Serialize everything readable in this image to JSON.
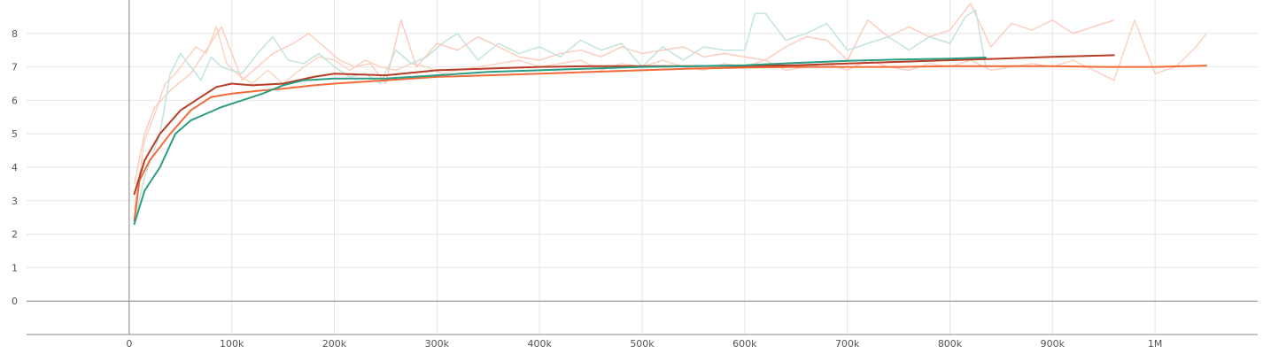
{
  "chart_data": {
    "type": "line",
    "title": "",
    "xlabel": "",
    "ylabel": "",
    "xlim": [
      -100000,
      1100000
    ],
    "ylim": [
      -1,
      9
    ],
    "x_ticks": [
      {
        "value": 0,
        "label": "0"
      },
      {
        "value": 100000,
        "label": "100k"
      },
      {
        "value": 200000,
        "label": "200k"
      },
      {
        "value": 300000,
        "label": "300k"
      },
      {
        "value": 400000,
        "label": "400k"
      },
      {
        "value": 500000,
        "label": "500k"
      },
      {
        "value": 600000,
        "label": "600k"
      },
      {
        "value": 700000,
        "label": "700k"
      },
      {
        "value": 800000,
        "label": "800k"
      },
      {
        "value": 900000,
        "label": "900k"
      },
      {
        "value": 1000000,
        "label": "1M"
      }
    ],
    "y_ticks": [
      {
        "value": 0,
        "label": "0"
      },
      {
        "value": 1,
        "label": "1"
      },
      {
        "value": 2,
        "label": "2"
      },
      {
        "value": 3,
        "label": "3"
      },
      {
        "value": 4,
        "label": "4"
      },
      {
        "value": 5,
        "label": "5"
      },
      {
        "value": 6,
        "label": "6"
      },
      {
        "value": 7,
        "label": "7"
      },
      {
        "value": 8,
        "label": "8"
      }
    ],
    "grid": true,
    "legend": "none",
    "series": [
      {
        "color": "#f26b38",
        "raw_color": "#fbd0bf",
        "smoothed": {
          "x": [
            5000,
            10000,
            20000,
            40000,
            60000,
            80000,
            100000,
            130000,
            150000,
            180000,
            200000,
            250000,
            300000,
            350000,
            400000,
            450000,
            500000,
            550000,
            600000,
            650000,
            700000,
            750000,
            800000,
            850000,
            900000,
            950000,
            1000000,
            1050000
          ],
          "y": [
            2.4,
            3.6,
            4.2,
            5.0,
            5.7,
            6.1,
            6.2,
            6.3,
            6.35,
            6.45,
            6.5,
            6.6,
            6.7,
            6.75,
            6.8,
            6.85,
            6.9,
            6.95,
            6.98,
            7.0,
            7.0,
            7.0,
            7.02,
            7.02,
            7.02,
            7.0,
            7.0,
            7.04
          ]
        },
        "raw": {
          "x": [
            5000,
            15000,
            25000,
            35000,
            45000,
            55000,
            65000,
            75000,
            85000,
            95000,
            105000,
            120000,
            135000,
            150000,
            170000,
            185000,
            200000,
            215000,
            230000,
            245000,
            260000,
            275000,
            290000,
            305000,
            320000,
            340000,
            360000,
            380000,
            400000,
            420000,
            440000,
            460000,
            480000,
            500000,
            520000,
            540000,
            560000,
            580000,
            600000,
            620000,
            640000,
            660000,
            680000,
            700000,
            720000,
            740000,
            760000,
            780000,
            800000,
            820000,
            840000,
            860000,
            880000,
            900000,
            920000,
            940000,
            960000,
            980000,
            1000000,
            1020000,
            1040000,
            1050000
          ],
          "y": [
            2.7,
            4.8,
            5.6,
            6.5,
            6.8,
            7.2,
            7.6,
            7.4,
            8.2,
            7.1,
            6.8,
            6.5,
            6.9,
            6.5,
            7.0,
            7.3,
            7.2,
            6.9,
            7.2,
            7.0,
            6.9,
            7.1,
            7.0,
            6.8,
            6.9,
            7.0,
            7.1,
            7.2,
            7.0,
            7.1,
            7.2,
            6.9,
            7.1,
            7.0,
            7.2,
            7.0,
            6.9,
            7.1,
            7.0,
            7.2,
            6.9,
            7.0,
            7.1,
            6.9,
            7.2,
            7.0,
            6.9,
            7.1,
            7.0,
            7.2,
            6.9,
            7.0,
            7.1,
            7.0,
            7.2,
            6.9,
            6.6,
            8.4,
            6.8,
            7.0,
            7.6,
            8.0
          ]
        }
      },
      {
        "color": "#b83c26",
        "raw_color": "#ffc9bc",
        "smoothed": {
          "x": [
            5000,
            15000,
            30000,
            50000,
            70000,
            85000,
            100000,
            120000,
            150000,
            180000,
            200000,
            250000,
            300000,
            350000,
            400000,
            450000,
            500000,
            550000,
            600000,
            650000,
            700000,
            750000,
            800000,
            850000,
            900000,
            960000
          ],
          "y": [
            3.2,
            4.2,
            5.0,
            5.7,
            6.1,
            6.4,
            6.5,
            6.45,
            6.5,
            6.7,
            6.8,
            6.75,
            6.9,
            6.95,
            7.0,
            7.02,
            7.02,
            7.02,
            7.03,
            7.05,
            7.1,
            7.15,
            7.2,
            7.25,
            7.3,
            7.35
          ]
        },
        "raw": {
          "x": [
            5000,
            15000,
            25000,
            40000,
            60000,
            75000,
            90000,
            110000,
            125000,
            140000,
            160000,
            175000,
            190000,
            205000,
            220000,
            235000,
            250000,
            265000,
            280000,
            300000,
            320000,
            340000,
            360000,
            380000,
            400000,
            420000,
            440000,
            460000,
            480000,
            500000,
            520000,
            540000,
            560000,
            580000,
            600000,
            620000,
            640000,
            660000,
            680000,
            700000,
            720000,
            740000,
            760000,
            780000,
            800000,
            820000,
            840000,
            860000,
            880000,
            900000,
            920000,
            940000,
            960000
          ],
          "y": [
            3.5,
            5.0,
            5.8,
            6.3,
            6.8,
            7.5,
            8.2,
            6.6,
            7.0,
            7.4,
            7.7,
            8.0,
            7.6,
            7.2,
            7.0,
            7.1,
            6.5,
            8.4,
            7.0,
            7.7,
            7.5,
            7.9,
            7.6,
            7.3,
            7.2,
            7.4,
            7.5,
            7.3,
            7.6,
            7.4,
            7.5,
            7.6,
            7.3,
            7.4,
            7.3,
            7.2,
            7.6,
            7.9,
            7.8,
            7.2,
            8.4,
            7.9,
            8.2,
            7.9,
            8.1,
            8.9,
            7.6,
            8.3,
            8.1,
            8.4,
            8.0,
            8.2,
            8.4
          ]
        }
      },
      {
        "color": "#2a9d82",
        "raw_color": "#bfe3d9",
        "smoothed": {
          "x": [
            5000,
            15000,
            30000,
            45000,
            60000,
            75000,
            90000,
            110000,
            130000,
            150000,
            170000,
            200000,
            250000,
            300000,
            350000,
            400000,
            450000,
            500000,
            550000,
            600000,
            650000,
            700000,
            750000,
            800000,
            835000
          ],
          "y": [
            2.3,
            3.3,
            4.0,
            5.0,
            5.4,
            5.6,
            5.8,
            6.0,
            6.2,
            6.45,
            6.6,
            6.65,
            6.65,
            6.75,
            6.85,
            6.9,
            6.95,
            7.0,
            7.02,
            7.05,
            7.12,
            7.18,
            7.22,
            7.25,
            7.28
          ]
        },
        "raw": {
          "x": [
            5000,
            15000,
            30000,
            40000,
            50000,
            60000,
            70000,
            80000,
            90000,
            100000,
            110000,
            125000,
            140000,
            155000,
            170000,
            185000,
            200000,
            215000,
            230000,
            245000,
            260000,
            275000,
            290000,
            305000,
            320000,
            340000,
            360000,
            380000,
            400000,
            420000,
            440000,
            460000,
            480000,
            500000,
            520000,
            540000,
            560000,
            580000,
            600000,
            610000,
            620000,
            640000,
            660000,
            680000,
            700000,
            720000,
            740000,
            760000,
            780000,
            800000,
            815000,
            825000,
            835000
          ],
          "y": [
            2.4,
            3.7,
            5.0,
            6.8,
            7.4,
            7.0,
            6.6,
            7.3,
            7.0,
            6.9,
            6.8,
            7.4,
            7.9,
            7.2,
            7.1,
            7.4,
            7.0,
            6.7,
            6.8,
            6.5,
            7.5,
            7.1,
            7.3,
            7.7,
            8.0,
            7.2,
            7.7,
            7.4,
            7.6,
            7.3,
            7.8,
            7.5,
            7.7,
            7.0,
            7.6,
            7.2,
            7.6,
            7.5,
            7.5,
            8.6,
            8.6,
            7.8,
            8.0,
            8.3,
            7.5,
            7.7,
            7.9,
            7.5,
            7.9,
            7.7,
            8.5,
            8.7,
            7.0
          ]
        }
      }
    ]
  }
}
